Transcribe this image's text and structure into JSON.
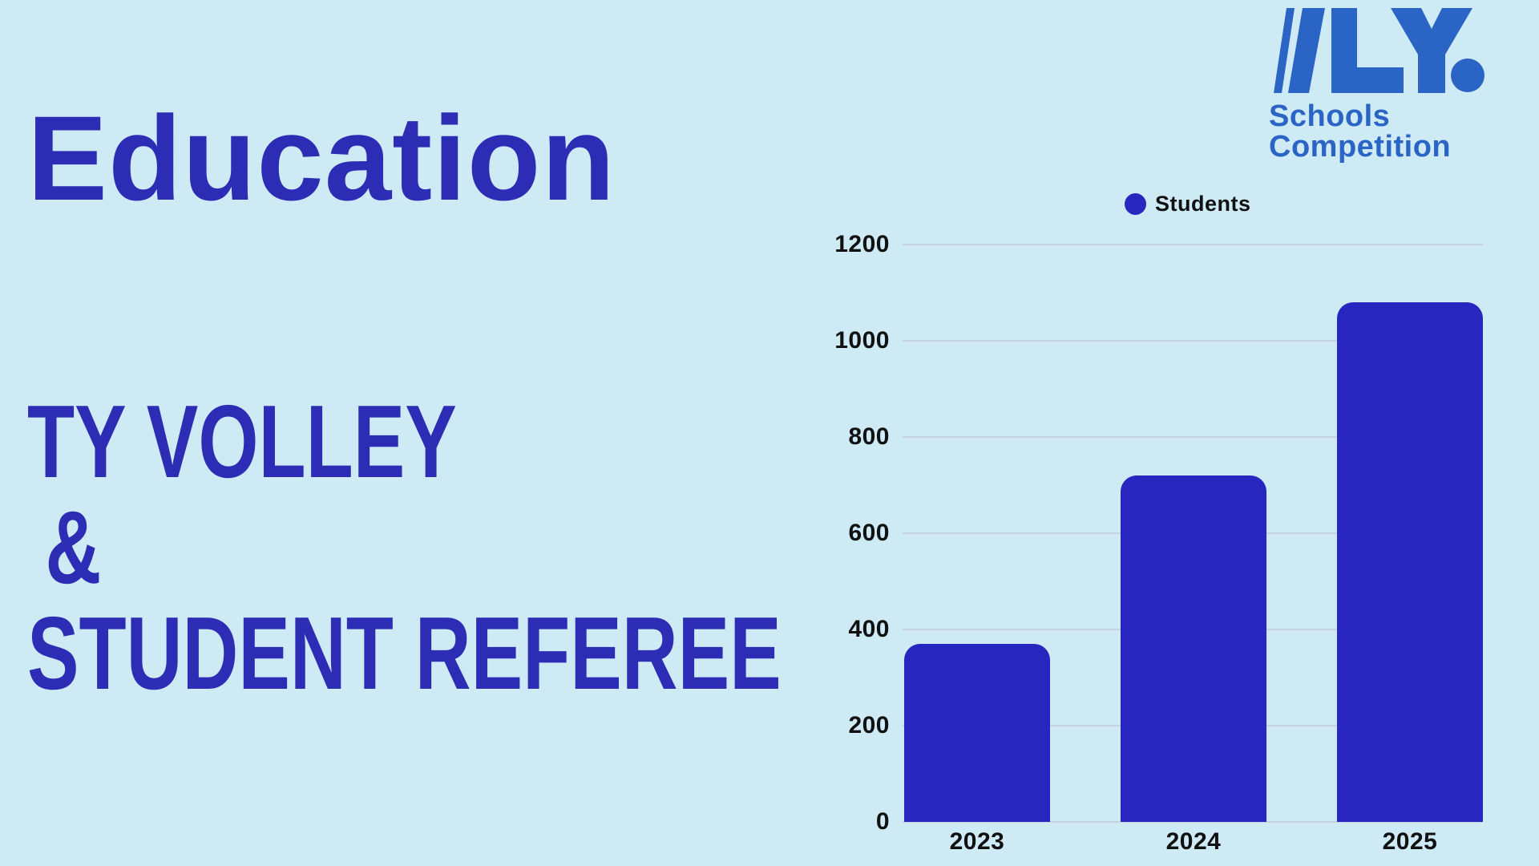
{
  "slide": {
    "title": "Education",
    "heading_lines": [
      "TY VOLLEY",
      "&",
      "STUDENT REFEREE"
    ]
  },
  "logo": {
    "mark_text": "VLY.",
    "line1": "Schools",
    "line2": "Competition"
  },
  "chart_data": {
    "type": "bar",
    "title": "",
    "categories": [
      "2023",
      "2024",
      "2025"
    ],
    "series": [
      {
        "name": "Students",
        "values": [
          370,
          720,
          1080
        ],
        "color": "#2727bf"
      }
    ],
    "xlabel": "",
    "ylabel": "",
    "ylim": [
      0,
      1200
    ],
    "yticks": [
      0,
      200,
      400,
      600,
      800,
      1000,
      1200
    ],
    "grid": "horizontal",
    "legend_position": "top"
  },
  "colors": {
    "background": "#cdeaf5",
    "heading": "#2d2cb5",
    "bar": "#2727bf",
    "logo": "#2a64c4",
    "grid_line": "#c2d3db",
    "axis_text": "#111111"
  }
}
